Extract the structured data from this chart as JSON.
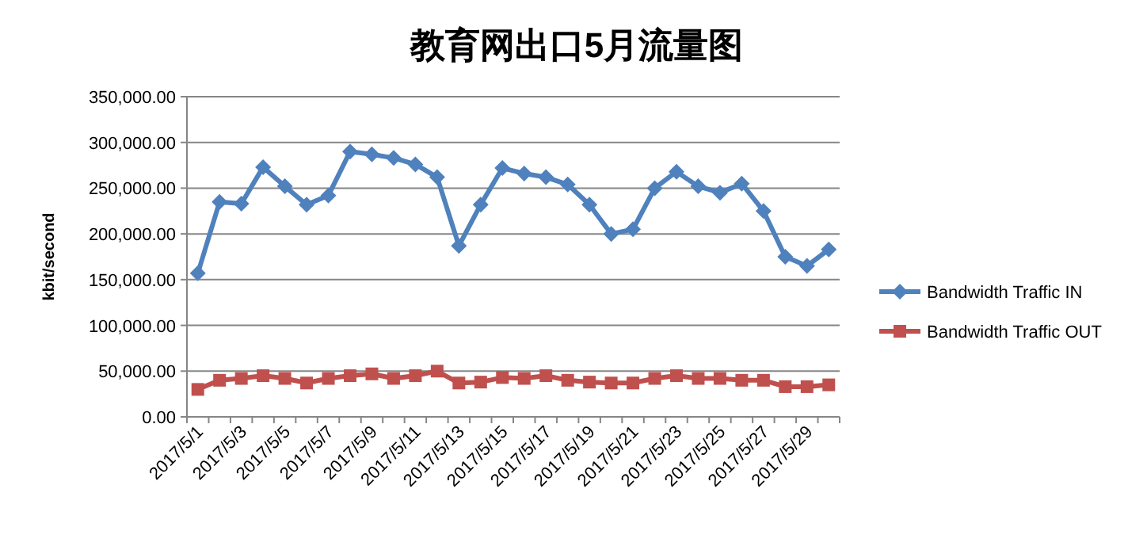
{
  "chart_data": {
    "type": "line",
    "title": "教育网出口5月流量图",
    "ylabel": "kbit/second",
    "categories": [
      "2017/5/1",
      null,
      "2017/5/3",
      null,
      "2017/5/5",
      null,
      "2017/5/7",
      null,
      "2017/5/9",
      null,
      "2017/5/11",
      null,
      "2017/5/13",
      null,
      "2017/5/15",
      null,
      "2017/5/17",
      null,
      "2017/5/19",
      null,
      "2017/5/21",
      null,
      "2017/5/23",
      null,
      "2017/5/25",
      null,
      "2017/5/27",
      null,
      "2017/5/29",
      null
    ],
    "series": [
      {
        "name": "Bandwidth Traffic IN",
        "color": "#4f81bd",
        "marker": "diamond",
        "values": [
          157000,
          235000,
          233000,
          273000,
          252000,
          232000,
          242000,
          290000,
          287000,
          283000,
          276000,
          262000,
          187000,
          232000,
          272000,
          266000,
          262000,
          254000,
          232000,
          200000,
          205000,
          250000,
          268000,
          252000,
          245000,
          255000,
          225000,
          175000,
          165000,
          183000
        ]
      },
      {
        "name": "Bandwidth Traffic OUT",
        "color": "#c0504d",
        "marker": "square",
        "values": [
          30000,
          40000,
          42000,
          45000,
          42000,
          37000,
          42000,
          45000,
          47000,
          42000,
          45000,
          50000,
          37000,
          38000,
          43000,
          42000,
          45000,
          40000,
          38000,
          37000,
          37000,
          42000,
          45000,
          42000,
          42000,
          40000,
          40000,
          33000,
          33000,
          35000
        ]
      }
    ],
    "ylim": [
      0,
      350000
    ],
    "yticks": [
      {
        "value": 0,
        "label": "0.00"
      },
      {
        "value": 50000,
        "label": "50,000.00"
      },
      {
        "value": 100000,
        "label": "100,000.00"
      },
      {
        "value": 150000,
        "label": "150,000.00"
      },
      {
        "value": 200000,
        "label": "200,000.00"
      },
      {
        "value": 250000,
        "label": "250,000.00"
      },
      {
        "value": 300000,
        "label": "300,000.00"
      },
      {
        "value": 350000,
        "label": "350,000.00"
      }
    ],
    "grid": "y",
    "legend": "right"
  }
}
